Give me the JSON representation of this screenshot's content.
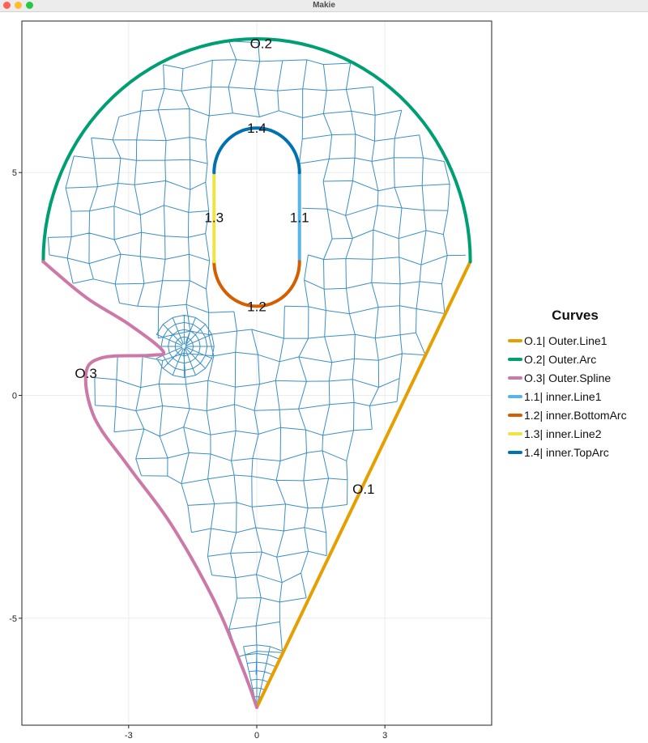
{
  "window": {
    "title": "Makie"
  },
  "chart_data": {
    "type": "mesh",
    "xlim": [
      -5.5,
      5.5
    ],
    "ylim": [
      -7.4,
      8.4
    ],
    "grid": true,
    "x_ticks": [
      {
        "value": -3,
        "label": "-3"
      },
      {
        "value": 0,
        "label": "0"
      },
      {
        "value": 3,
        "label": "3"
      }
    ],
    "y_ticks": [
      {
        "value": -5,
        "label": "-5"
      },
      {
        "value": 0,
        "label": "0"
      },
      {
        "value": 5,
        "label": "5"
      }
    ],
    "mesh_color": "#3a8fc4",
    "legend": {
      "title": "Curves",
      "placement": "right"
    },
    "curves": [
      {
        "name": "O.1| Outer.Line1",
        "label": "O.1",
        "color": "#e69f00",
        "label_pos": [
          2.5,
          -2.1
        ],
        "points": [
          [
            0,
            -7
          ],
          [
            5,
            3
          ]
        ]
      },
      {
        "name": "O.2| Outer.Arc",
        "label": "O.2",
        "color": "#009e73",
        "label_pos": [
          0.1,
          7.9
        ],
        "arc": {
          "center": [
            0,
            3
          ],
          "radius": 5,
          "from_deg": 0,
          "to_deg": 180
        }
      },
      {
        "name": "O.3| Outer.Spline",
        "label": "O.3",
        "color": "#cc79a7",
        "label_pos": [
          -4.0,
          0.5
        ],
        "points": [
          [
            -5,
            3
          ],
          [
            -4.0,
            2.2
          ],
          [
            -3.0,
            1.6
          ],
          [
            -2.2,
            1.0
          ],
          [
            -2.5,
            0.9
          ],
          [
            -3.6,
            0.85
          ],
          [
            -4.0,
            0.5
          ],
          [
            -3.8,
            -0.5
          ],
          [
            -3.0,
            -1.6
          ],
          [
            -2.0,
            -2.9
          ],
          [
            -1.0,
            -4.6
          ],
          [
            -0.3,
            -6.2
          ],
          [
            0,
            -7
          ]
        ]
      },
      {
        "name": "1.1| inner.Line1",
        "label": "1.1",
        "color": "#56b4e9",
        "label_pos": [
          1.0,
          4.0
        ],
        "points": [
          [
            1,
            3
          ],
          [
            1,
            5
          ]
        ]
      },
      {
        "name": "1.2| inner.BottomArc",
        "label": "1.2",
        "color": "#d55e00",
        "label_pos": [
          0.0,
          2.0
        ],
        "arc": {
          "center": [
            0,
            3
          ],
          "radius": 1,
          "from_deg": 0,
          "to_deg": -180
        }
      },
      {
        "name": "1.3| inner.Line2",
        "label": "1.3",
        "color": "#f0e442",
        "label_pos": [
          -1.0,
          4.0
        ],
        "points": [
          [
            -1,
            5
          ],
          [
            -1,
            3
          ]
        ]
      },
      {
        "name": "1.4| inner.TopArc",
        "label": "1.4",
        "color": "#0072b2",
        "label_pos": [
          0.0,
          6.0
        ],
        "arc": {
          "center": [
            0,
            5
          ],
          "radius": 1,
          "from_deg": 180,
          "to_deg": 0
        }
      }
    ]
  }
}
